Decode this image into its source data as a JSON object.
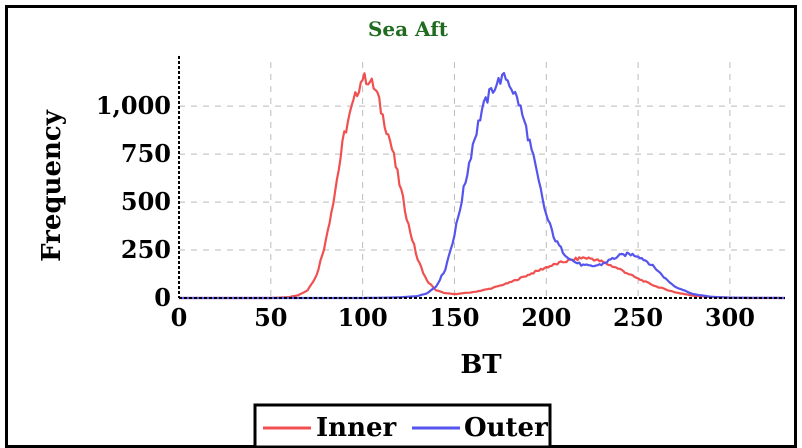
{
  "chart_data": {
    "type": "line",
    "title": "Sea Aft",
    "title_color": "#1f6b1f",
    "xlabel": "BT",
    "ylabel": "Frequency",
    "xlim": [
      0,
      330
    ],
    "ylim": [
      0,
      1230
    ],
    "x_ticks": [
      0,
      50,
      100,
      150,
      200,
      250,
      300
    ],
    "y_ticks": [
      0,
      250,
      500,
      750,
      1000
    ],
    "x_tick_labels": [
      "0",
      "50",
      "100",
      "150",
      "200",
      "250",
      "300"
    ],
    "y_tick_labels": [
      "0",
      "250",
      "500",
      "750",
      "1,000"
    ],
    "grid": true,
    "legend_position": "bottom-center",
    "series": [
      {
        "name": "Inner",
        "color": "#f05050",
        "x": [
          0,
          50,
          55,
          60,
          65,
          70,
          75,
          80,
          85,
          90,
          95,
          98,
          100,
          102,
          105,
          108,
          110,
          115,
          120,
          125,
          130,
          135,
          140,
          145,
          150,
          160,
          170,
          180,
          190,
          200,
          210,
          220,
          225,
          230,
          240,
          250,
          260,
          270,
          280,
          290,
          300,
          310,
          330
        ],
        "values": [
          0,
          0,
          2,
          5,
          15,
          40,
          120,
          300,
          560,
          850,
          1020,
          1100,
          1150,
          1140,
          1120,
          1060,
          980,
          820,
          600,
          380,
          200,
          90,
          40,
          25,
          20,
          30,
          50,
          80,
          120,
          160,
          190,
          210,
          205,
          190,
          150,
          100,
          60,
          30,
          12,
          5,
          2,
          0,
          0
        ]
      },
      {
        "name": "Outer",
        "color": "#5555ee",
        "x": [
          0,
          100,
          120,
          130,
          135,
          140,
          145,
          150,
          155,
          160,
          165,
          170,
          175,
          178,
          180,
          185,
          190,
          195,
          200,
          205,
          210,
          215,
          220,
          225,
          230,
          235,
          240,
          245,
          250,
          255,
          260,
          265,
          270,
          280,
          290,
          300,
          330
        ],
        "values": [
          0,
          0,
          3,
          10,
          25,
          60,
          150,
          330,
          560,
          800,
          980,
          1080,
          1140,
          1150,
          1120,
          1020,
          850,
          640,
          430,
          300,
          230,
          190,
          170,
          165,
          175,
          200,
          220,
          230,
          220,
          190,
          150,
          100,
          60,
          20,
          6,
          2,
          0
        ]
      }
    ]
  }
}
